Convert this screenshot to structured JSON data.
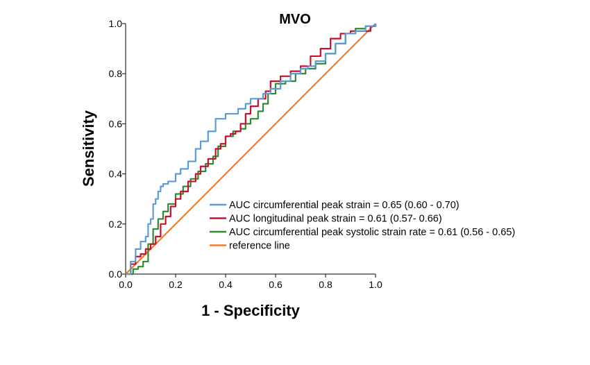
{
  "chart_data": {
    "type": "line",
    "title": "MVO",
    "xlabel": "1 - Specificity",
    "ylabel": "Sensitivity",
    "xlim": [
      0,
      1
    ],
    "ylim": [
      0,
      1
    ],
    "x_ticks": [
      "0.0",
      "0.2",
      "0.4",
      "0.6",
      "0.8",
      "1.0"
    ],
    "y_ticks": [
      "0.0",
      "0.2",
      "0.4",
      "0.6",
      "0.8",
      "1.0"
    ],
    "grid": false,
    "legend_position": "lower-right",
    "series": [
      {
        "name": "AUC circumferential peak strain = 0.65 (0.60 - 0.70)",
        "color": "#5b9bd5",
        "x": [
          0,
          0.02,
          0.04,
          0.06,
          0.08,
          0.09,
          0.1,
          0.11,
          0.12,
          0.13,
          0.14,
          0.15,
          0.17,
          0.2,
          0.22,
          0.25,
          0.28,
          0.3,
          0.33,
          0.36,
          0.4,
          0.42,
          0.45,
          0.48,
          0.5,
          0.55,
          0.58,
          0.62,
          0.66,
          0.7,
          0.73,
          0.76,
          0.8,
          0.84,
          0.88,
          0.92,
          0.96,
          1.0
        ],
        "y": [
          0,
          0.05,
          0.1,
          0.13,
          0.15,
          0.2,
          0.22,
          0.28,
          0.3,
          0.33,
          0.35,
          0.36,
          0.37,
          0.4,
          0.42,
          0.45,
          0.5,
          0.53,
          0.57,
          0.62,
          0.64,
          0.64,
          0.66,
          0.68,
          0.7,
          0.72,
          0.74,
          0.77,
          0.8,
          0.82,
          0.83,
          0.85,
          0.88,
          0.92,
          0.96,
          0.97,
          0.99,
          1.0
        ]
      },
      {
        "name": "AUC longitudinal peak strain = 0.61 (0.57- 0.66)",
        "color": "#c8102e",
        "x": [
          0,
          0.02,
          0.04,
          0.06,
          0.08,
          0.1,
          0.12,
          0.14,
          0.16,
          0.18,
          0.2,
          0.22,
          0.25,
          0.28,
          0.3,
          0.33,
          0.36,
          0.38,
          0.4,
          0.42,
          0.44,
          0.46,
          0.48,
          0.5,
          0.53,
          0.56,
          0.58,
          0.62,
          0.66,
          0.7,
          0.74,
          0.78,
          0.82,
          0.86,
          0.9,
          0.94,
          0.98,
          1.0
        ],
        "y": [
          0,
          0.04,
          0.07,
          0.08,
          0.1,
          0.12,
          0.15,
          0.2,
          0.23,
          0.27,
          0.3,
          0.33,
          0.37,
          0.4,
          0.43,
          0.46,
          0.5,
          0.52,
          0.55,
          0.56,
          0.57,
          0.6,
          0.64,
          0.67,
          0.7,
          0.73,
          0.77,
          0.79,
          0.81,
          0.83,
          0.87,
          0.9,
          0.94,
          0.96,
          0.97,
          0.97,
          0.99,
          1.0
        ]
      },
      {
        "name": "AUC circumferential peak systolic strain rate = 0.61 (0.56 - 0.65)",
        "color": "#2e8b2e",
        "x": [
          0,
          0.03,
          0.05,
          0.07,
          0.09,
          0.11,
          0.13,
          0.15,
          0.17,
          0.2,
          0.23,
          0.26,
          0.29,
          0.32,
          0.35,
          0.37,
          0.4,
          0.43,
          0.46,
          0.48,
          0.5,
          0.53,
          0.55,
          0.57,
          0.6,
          0.64,
          0.68,
          0.72,
          0.76,
          0.8,
          0.84,
          0.88,
          0.92,
          0.96,
          1.0
        ],
        "y": [
          0,
          0.02,
          0.03,
          0.05,
          0.12,
          0.18,
          0.22,
          0.25,
          0.28,
          0.32,
          0.35,
          0.38,
          0.41,
          0.44,
          0.47,
          0.51,
          0.55,
          0.57,
          0.58,
          0.6,
          0.62,
          0.65,
          0.68,
          0.72,
          0.76,
          0.77,
          0.8,
          0.82,
          0.84,
          0.88,
          0.92,
          0.96,
          0.98,
          0.99,
          1.0
        ]
      },
      {
        "name": "reference line",
        "color": "#ed7d31",
        "x": [
          0,
          1
        ],
        "y": [
          0,
          1
        ]
      }
    ]
  }
}
